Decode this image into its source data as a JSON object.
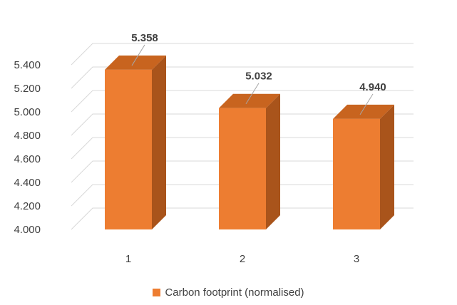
{
  "chart_data": {
    "type": "bar",
    "style": "3d-column",
    "categories": [
      "1",
      "2",
      "3"
    ],
    "series": [
      {
        "name": "Carbon footprint (normalised)",
        "values": [
          5.358,
          5.032,
          4.94
        ],
        "value_labels": [
          "5.358",
          "5.032",
          "4.940"
        ],
        "color": "#ED7D31",
        "side_color": "#A9541B",
        "top_color": "#C8641F"
      }
    ],
    "y_ticks": [
      "4.000",
      "4.200",
      "4.400",
      "4.600",
      "4.800",
      "5.000",
      "5.200",
      "5.400"
    ],
    "ylim": [
      4.0,
      5.6
    ],
    "grid": true,
    "gridline_color": "#D9D9D9",
    "legend_position": "bottom",
    "title": "",
    "xlabel": "",
    "ylabel": ""
  }
}
